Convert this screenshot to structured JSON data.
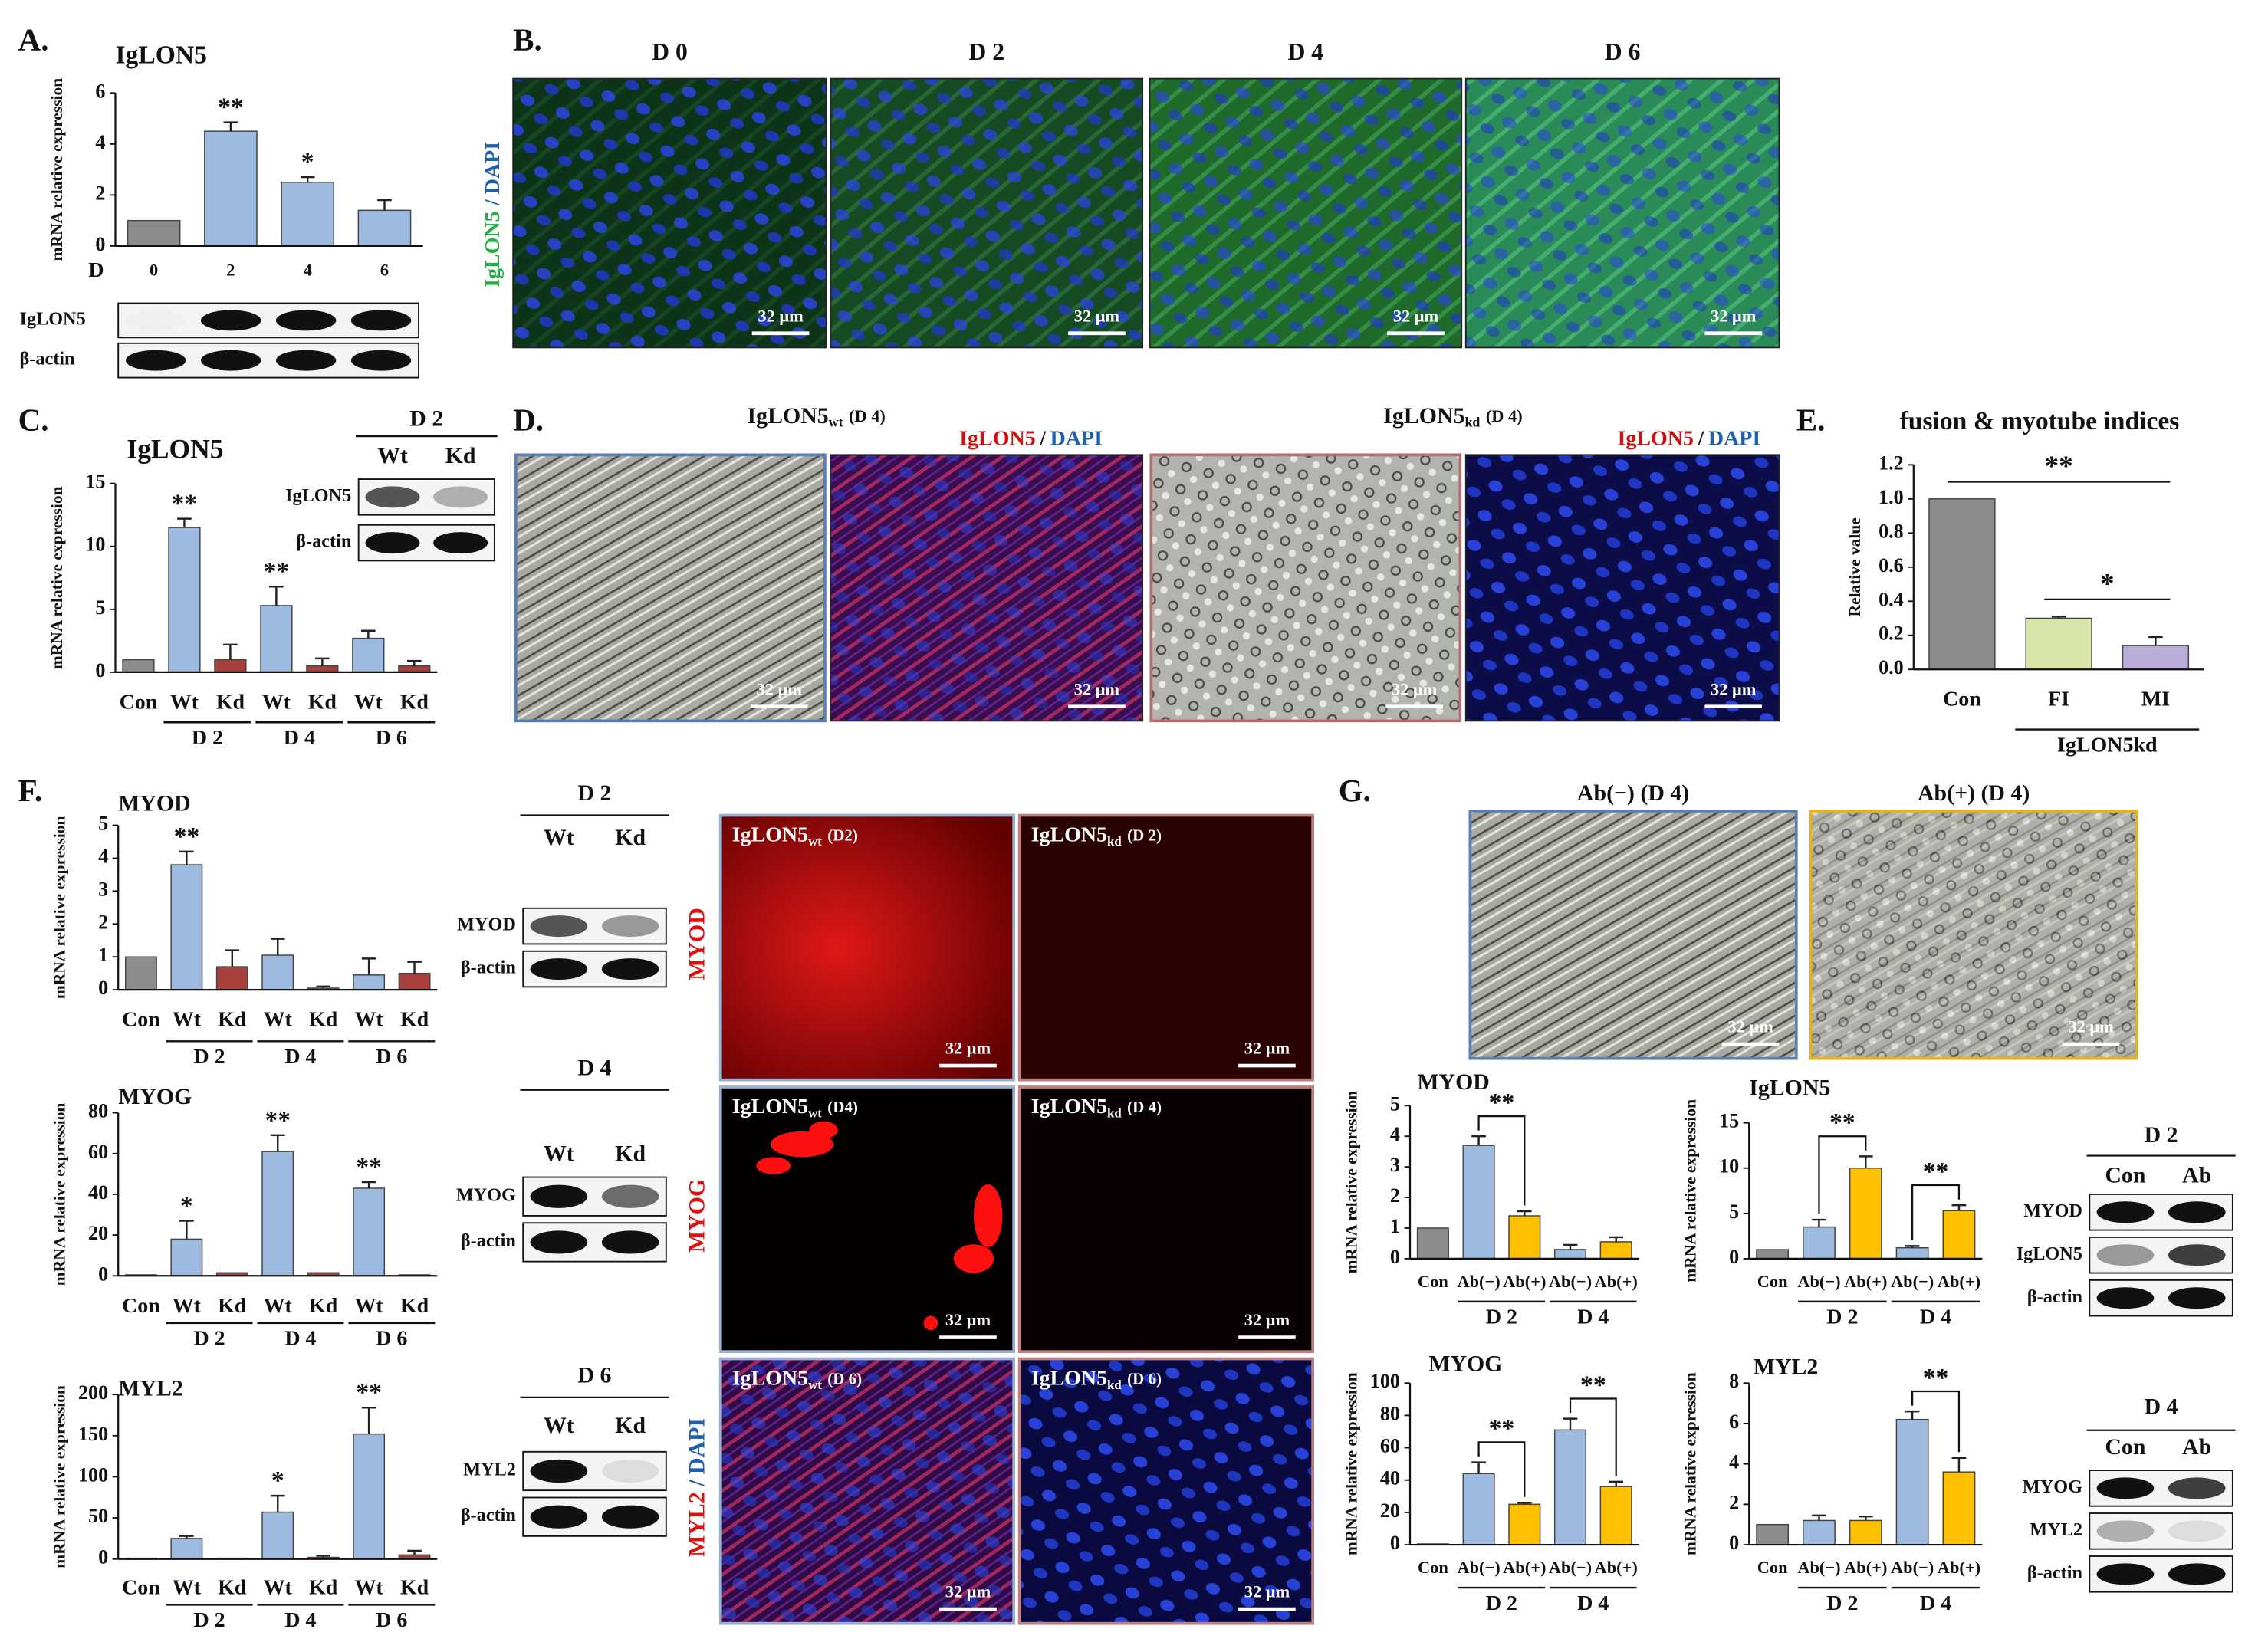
{
  "chart_data": [
    {
      "type": "bar",
      "title": "IgLON5",
      "y_label": "mRNA relative expression",
      "x_label": "D",
      "categories": [
        "0",
        "2",
        "4",
        "6"
      ],
      "values": [
        1,
        4.5,
        2.5,
        1.4
      ],
      "errors": [
        0,
        0.35,
        0.2,
        0.4
      ],
      "colors": [
        "#8c8c8c",
        "#9dbbe0",
        "#9dbbe0",
        "#9dbbe0"
      ],
      "stars": [
        null,
        "**",
        "*",
        null
      ],
      "ylim": [
        0,
        6
      ],
      "yticks": [
        0,
        2,
        4,
        6
      ]
    },
    {
      "type": "bar",
      "title": "IgLON5",
      "y_label": "mRNA relative expression",
      "categories": [
        "Con",
        "Wt",
        "Kd",
        "Wt",
        "Kd",
        "Wt",
        "Kd"
      ],
      "groups": [
        "D 2",
        "D 4",
        "D 6"
      ],
      "values": [
        1,
        11.5,
        1,
        5.3,
        0.5,
        2.7,
        0.5
      ],
      "errors": [
        0,
        0.7,
        1.2,
        1.5,
        0.6,
        0.6,
        0.4
      ],
      "colors": [
        "#8c8c8c",
        "#9dbbe0",
        "#a5403c",
        "#9dbbe0",
        "#a5403c",
        "#9dbbe0",
        "#a5403c"
      ],
      "stars": [
        null,
        "**",
        null,
        "**",
        null,
        null,
        null
      ],
      "ylim": [
        0,
        15
      ],
      "yticks": [
        0,
        5,
        10,
        15
      ]
    },
    {
      "type": "bar",
      "title": "fusion & myotube indices",
      "y_label": "Relative value",
      "categories": [
        "Con",
        "FI",
        "MI"
      ],
      "groups": [
        "IgLON5kd"
      ],
      "values": [
        1.0,
        0.3,
        0.14
      ],
      "errors": [
        0,
        0.01,
        0.05
      ],
      "colors": [
        "#8c8c8c",
        "#d7e6a8",
        "#b9acd8"
      ],
      "brackets": [
        "**",
        "*"
      ],
      "ylim": [
        0,
        1.2
      ],
      "yticks": [
        {
          "value": 0,
          "label": "0.0"
        },
        0.2,
        0.4,
        0.6,
        0.8,
        {
          "value": 1,
          "label": "1.0"
        },
        1.2
      ]
    },
    {
      "type": "bar",
      "title": "MYOD",
      "y_label": "mRNA relative expression",
      "categories": [
        "Con",
        "Wt",
        "Kd",
        "Wt",
        "Kd",
        "Wt",
        "Kd"
      ],
      "groups": [
        "D 2",
        "D 4",
        "D 6"
      ],
      "values": [
        1,
        3.8,
        0.7,
        1.05,
        0.05,
        0.45,
        0.5
      ],
      "errors": [
        0,
        0.4,
        0.5,
        0.5,
        0.05,
        0.5,
        0.35
      ],
      "colors": [
        "#8c8c8c",
        "#9dbbe0",
        "#a5403c",
        "#9dbbe0",
        "#a5403c",
        "#9dbbe0",
        "#a5403c"
      ],
      "stars": [
        null,
        "**",
        null,
        null,
        null,
        null,
        null
      ],
      "ylim": [
        0,
        5
      ],
      "yticks": [
        0,
        1,
        2,
        3,
        4,
        5
      ]
    },
    {
      "type": "bar",
      "title": "MYOG",
      "y_label": "mRNA relative expression",
      "categories": [
        "Con",
        "Wt",
        "Kd",
        "Wt",
        "Kd",
        "Wt",
        "Kd"
      ],
      "groups": [
        "D 2",
        "D 4",
        "D 6"
      ],
      "values": [
        0.5,
        18,
        1.5,
        61,
        1.5,
        43,
        0.5
      ],
      "errors": [
        0,
        9,
        0,
        8,
        0,
        3,
        0
      ],
      "colors": [
        "#8c8c8c",
        "#9dbbe0",
        "#a5403c",
        "#9dbbe0",
        "#a5403c",
        "#9dbbe0",
        "#a5403c"
      ],
      "stars": [
        null,
        "*",
        null,
        "**",
        null,
        "**",
        null
      ],
      "ylim": [
        0,
        80
      ],
      "yticks": [
        0,
        20,
        40,
        60,
        80
      ]
    },
    {
      "type": "bar",
      "title": "MYL2",
      "y_label": "mRNA relative expression",
      "categories": [
        "Con",
        "Wt",
        "Kd",
        "Wt",
        "Kd",
        "Wt",
        "Kd"
      ],
      "groups": [
        "D 2",
        "D 4",
        "D 6"
      ],
      "values": [
        1,
        25,
        1,
        57,
        2,
        152,
        5
      ],
      "errors": [
        0,
        3,
        0,
        20,
        2,
        32,
        5
      ],
      "colors": [
        "#8c8c8c",
        "#9dbbe0",
        "#a5403c",
        "#9dbbe0",
        "#a5403c",
        "#9dbbe0",
        "#a5403c"
      ],
      "stars": [
        null,
        null,
        null,
        "*",
        null,
        "**",
        null
      ],
      "ylim": [
        0,
        200
      ],
      "yticks": [
        0,
        50,
        100,
        150,
        200
      ]
    },
    {
      "type": "bar",
      "title": "MYOD",
      "y_label": "mRNA relative expression",
      "categories": [
        "Con",
        "Ab(−)",
        "Ab(+)",
        "Ab(−)",
        "Ab(+)"
      ],
      "groups": [
        "D 2",
        "D 4"
      ],
      "values": [
        1,
        3.7,
        1.4,
        0.3,
        0.55
      ],
      "errors": [
        0,
        0.3,
        0.15,
        0.15,
        0.15
      ],
      "colors": [
        "#8c8c8c",
        "#9dbbe0",
        "#ffc000",
        "#9dbbe0",
        "#ffc000"
      ],
      "brackets": [
        "**",
        null
      ],
      "ylim": [
        0,
        5
      ],
      "yticks": [
        0,
        1,
        2,
        3,
        4,
        5
      ]
    },
    {
      "type": "bar",
      "title": "IgLON5",
      "y_label": "mRNA relative expression",
      "categories": [
        "Con",
        "Ab(−)",
        "Ab(+)",
        "Ab(−)",
        "Ab(+)"
      ],
      "groups": [
        "D 2",
        "D 4"
      ],
      "values": [
        1,
        3.5,
        10,
        1.2,
        5.3
      ],
      "errors": [
        0,
        0.8,
        1.3,
        0.2,
        0.6
      ],
      "colors": [
        "#8c8c8c",
        "#9dbbe0",
        "#ffc000",
        "#9dbbe0",
        "#ffc000"
      ],
      "brackets": [
        "**",
        "**"
      ],
      "ylim": [
        0,
        15
      ],
      "yticks": [
        0,
        5,
        10,
        15
      ]
    },
    {
      "type": "bar",
      "title": "MYOG",
      "y_label": "mRNA relative expression",
      "categories": [
        "Con",
        "Ab(−)",
        "Ab(+)",
        "Ab(−)",
        "Ab(+)"
      ],
      "groups": [
        "D 2",
        "D 4"
      ],
      "values": [
        0.5,
        44,
        25,
        71,
        36
      ],
      "errors": [
        0,
        7,
        1,
        7,
        3
      ],
      "colors": [
        "#8c8c8c",
        "#9dbbe0",
        "#ffc000",
        "#9dbbe0",
        "#ffc000"
      ],
      "brackets": [
        "**",
        "**"
      ],
      "ylim": [
        0,
        100
      ],
      "yticks": [
        0,
        20,
        40,
        60,
        80,
        100
      ]
    },
    {
      "type": "bar",
      "title": "MYL2",
      "y_label": "mRNA relative expression",
      "categories": [
        "Con",
        "Ab(−)",
        "Ab(+)",
        "Ab(−)",
        "Ab(+)"
      ],
      "groups": [
        "D 2",
        "D 4"
      ],
      "values": [
        1,
        1.2,
        1.2,
        6.2,
        3.6
      ],
      "errors": [
        0,
        0.25,
        0.2,
        0.4,
        0.7
      ],
      "colors": [
        "#8c8c8c",
        "#9dbbe0",
        "#ffc000",
        "#9dbbe0",
        "#ffc000"
      ],
      "brackets": [
        null,
        "**"
      ],
      "ylim": [
        0,
        8
      ],
      "yticks": [
        0,
        2,
        4,
        6,
        8
      ]
    }
  ],
  "figure": {
    "panel_labels": [
      "A.",
      "B.",
      "C.",
      "D.",
      "E.",
      "F.",
      "G."
    ],
    "scale_bar": "32 μm",
    "b_days": [
      "D 0",
      "D 2",
      "D 4",
      "D 6"
    ],
    "b_stain": [
      "IgLON5",
      "/ DAPI"
    ],
    "d_titles": [
      {
        "name": "IgLON5",
        "sub": "wt",
        "day": "(D 4)"
      },
      {
        "name": "IgLON5",
        "sub": "kd",
        "day": "(D 4)"
      }
    ],
    "d_stain": [
      "IgLON5",
      "/",
      "DAPI"
    ],
    "f_labels": [
      {
        "name": "IgLON5",
        "sub": "wt",
        "day": "(D2)"
      },
      {
        "name": "IgLON5",
        "sub": "kd",
        "day": "(D 2)"
      },
      {
        "name": "IgLON5",
        "sub": "wt",
        "day": "(D4)"
      },
      {
        "name": "IgLON5",
        "sub": "kd",
        "day": "(D 4)"
      },
      {
        "name": "IgLON5",
        "sub": "wt",
        "day": "(D 6)"
      },
      {
        "name": "IgLON5",
        "sub": "kd",
        "day": "(D 6)"
      }
    ],
    "f_stains": [
      "MYOD",
      "MYOG",
      "MYL2",
      "/ DAPI"
    ],
    "g_titles": [
      "Ab(−) (D 4)",
      "Ab(+) (D 4)"
    ],
    "blots": [
      {
        "rows": [
          "IgLON5",
          "β-actin"
        ]
      },
      {
        "header": "D 2",
        "lanes": [
          "Wt",
          "Kd"
        ],
        "rows": [
          "IgLON5",
          "β-actin"
        ]
      },
      {
        "header": "D 2",
        "lanes": [
          "Wt",
          "Kd"
        ],
        "rows": [
          "MYOD",
          "β-actin"
        ]
      },
      {
        "header": "D 4",
        "lanes": [
          "Wt",
          "Kd"
        ],
        "rows": [
          "MYOG",
          "β-actin"
        ]
      },
      {
        "header": "D 6",
        "lanes": [
          "Wt",
          "Kd"
        ],
        "rows": [
          "MYL2",
          "β-actin"
        ]
      },
      {
        "header": "D 2",
        "lanes": [
          "Con",
          "Ab"
        ],
        "rows": [
          "MYOD",
          "IgLON5",
          "β-actin"
        ]
      },
      {
        "header": "D 4",
        "lanes": [
          "Con",
          "Ab"
        ],
        "rows": [
          "MYOG",
          "MYL2",
          "β-actin"
        ]
      }
    ]
  }
}
